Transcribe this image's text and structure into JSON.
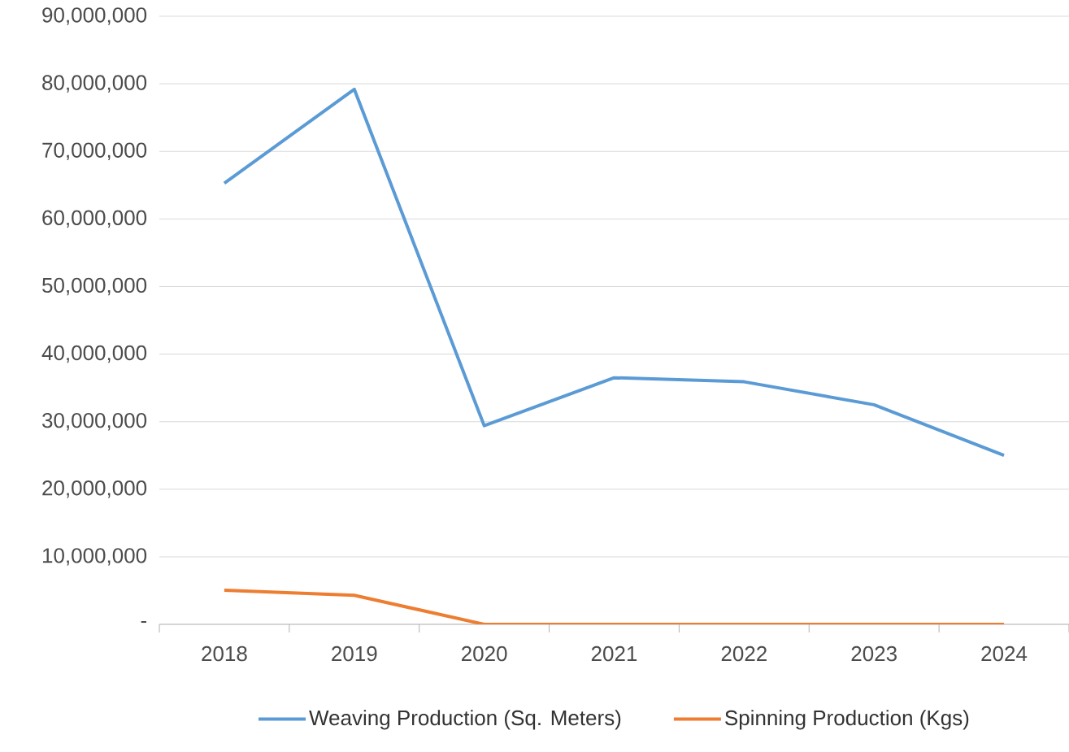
{
  "chart_data": {
    "type": "line",
    "categories": [
      "2018",
      "2019",
      "2020",
      "2021",
      "2022",
      "2023",
      "2024"
    ],
    "series": [
      {
        "name": "Weaving Production (Sq. Meters)",
        "color": "#5b9bd5",
        "values": [
          65300000,
          79200000,
          29400000,
          36500000,
          35900000,
          32500000,
          25000000
        ]
      },
      {
        "name": "Spinning Production (Kgs)",
        "color": "#ed7d31",
        "values": [
          5050000,
          4300000,
          0,
          0,
          0,
          0,
          0
        ]
      }
    ],
    "ylim": [
      0,
      90000000
    ],
    "yticks": [
      {
        "value": 0,
        "label": "-"
      },
      {
        "value": 10000000,
        "label": "10,000,000"
      },
      {
        "value": 20000000,
        "label": "20,000,000"
      },
      {
        "value": 30000000,
        "label": "30,000,000"
      },
      {
        "value": 40000000,
        "label": "40,000,000"
      },
      {
        "value": 50000000,
        "label": "50,000,000"
      },
      {
        "value": 60000000,
        "label": "60,000,000"
      },
      {
        "value": 70000000,
        "label": "70,000,000"
      },
      {
        "value": 80000000,
        "label": "80,000,000"
      },
      {
        "value": 90000000,
        "label": "90,000,000"
      }
    ],
    "grid": "y",
    "legend": "bottom",
    "marker": "none",
    "line_style": "solid"
  }
}
